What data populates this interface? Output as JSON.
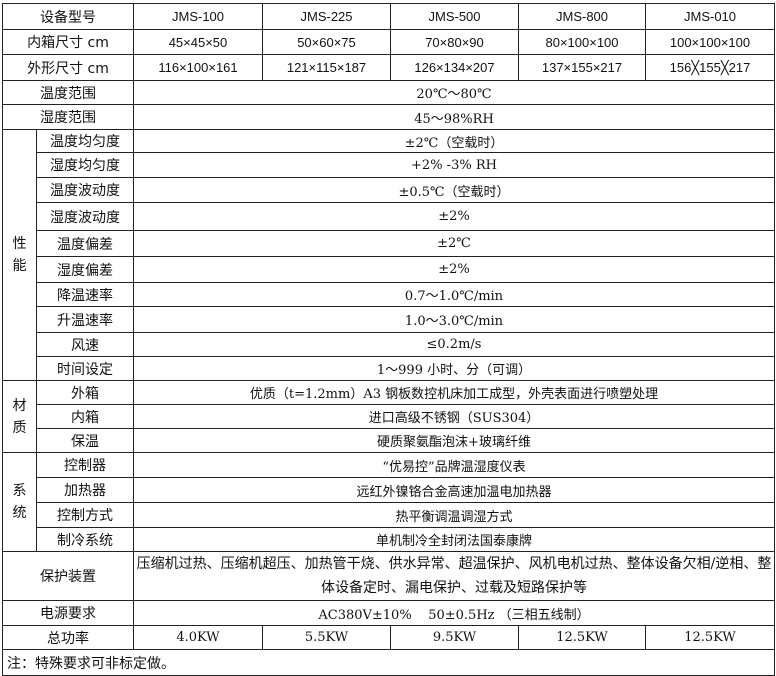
{
  "header": {
    "label": "设备型号",
    "models": [
      "JMS-100",
      "JMS-225",
      "JMS-500",
      "JMS-800",
      "JMS-010"
    ]
  },
  "inner_size": {
    "label": "内箱尺寸 cm",
    "values": [
      "45×45×50",
      "50×60×75",
      "70×80×90",
      "80×100×100",
      "100×100×100"
    ]
  },
  "outer_size": {
    "label": "外形尺寸 cm",
    "values": [
      "116×100×161",
      "121×115×187",
      "126×134×207",
      "137×155×217",
      "156╳155╳217"
    ]
  },
  "temp_range": {
    "label": "温度范围",
    "value": "20℃～80℃"
  },
  "humid_range": {
    "label": "湿度范围",
    "value": "45～98%RH"
  },
  "performance": {
    "group": "性能",
    "rows": [
      {
        "label": "温度均匀度",
        "value": "±2℃（空载时）"
      },
      {
        "label": "湿度均匀度",
        "value": "+2%  -3% RH"
      },
      {
        "label": "温度波动度",
        "value": "±0.5℃（空载时）"
      },
      {
        "label": "湿度波动度",
        "value": "±2%"
      },
      {
        "label": "温度偏差",
        "value": "±2℃"
      },
      {
        "label": "湿度偏差",
        "value": "±2%"
      },
      {
        "label": "降温速率",
        "value": "0.7～1.0℃/min"
      },
      {
        "label": "升温速率",
        "value": "1.0～3.0℃/min"
      },
      {
        "label": "风速",
        "value": "≤0.2m/s"
      },
      {
        "label": "时间设定",
        "value": "1～999 小时、分（可调）"
      }
    ]
  },
  "material": {
    "group": "材质",
    "rows": [
      {
        "label": "外箱",
        "value": "优质（t=1.2mm）A3 钢板数控机床加工成型，外壳表面进行喷塑处理"
      },
      {
        "label": "内箱",
        "value": "进口高级不锈钢（SUS304）"
      },
      {
        "label": "保温",
        "value": "硬质聚氨酯泡沫+玻璃纤维"
      }
    ]
  },
  "system": {
    "group": "系统",
    "rows": [
      {
        "label": "控制器",
        "value": "“优易控”品牌温湿度仪表"
      },
      {
        "label": "加热器",
        "value": "远红外镍铬合金高速加温电加热器"
      },
      {
        "label": "控制方式",
        "value": "热平衡调温调湿方式"
      },
      {
        "label": "制冷系统",
        "value": "单机制冷全封闭法国泰康牌"
      }
    ]
  },
  "protection": {
    "label": "保护装置",
    "value": "压缩机过热、压缩机超压、加热管干烧、供水异常、超温保护、风机电机过热、整体设备欠相/逆相、整体设备定时、漏电保护、过载及短路保护等"
  },
  "power_req": {
    "label": "电源要求",
    "value": "AC380V±10%    50±0.5Hz （三相五线制）"
  },
  "total_power": {
    "label": "总功率",
    "values": [
      "4.0KW",
      "5.5KW",
      "9.5KW",
      "12.5KW",
      "12.5KW"
    ]
  },
  "note": "注：特殊要求可非标定做。"
}
